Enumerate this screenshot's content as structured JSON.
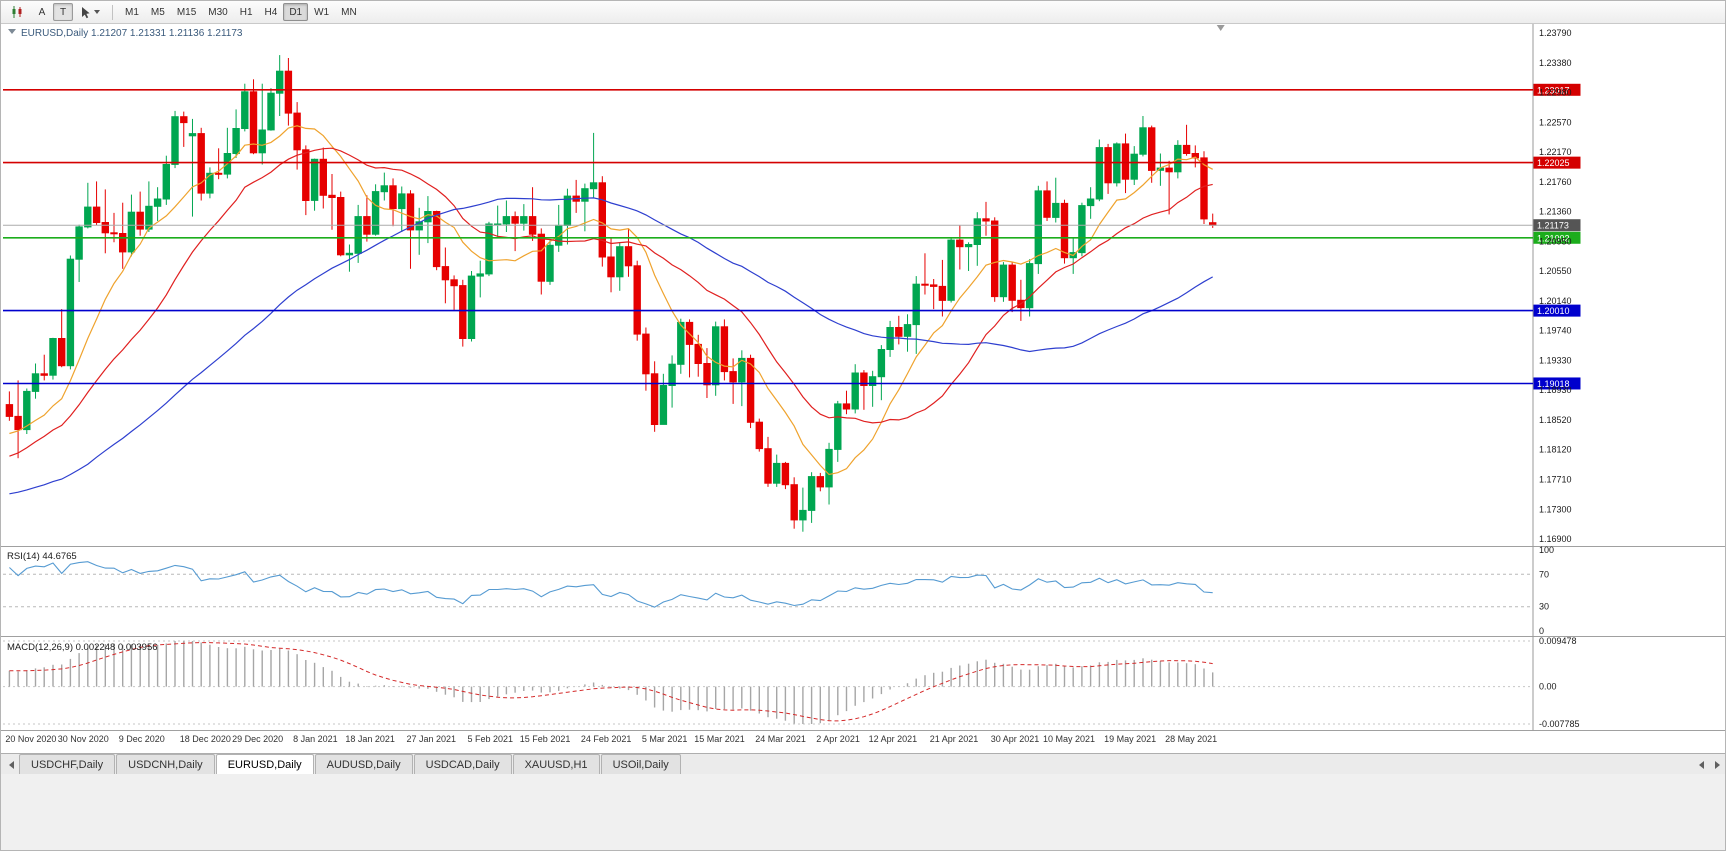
{
  "toolbar": {
    "a_label": "A",
    "t_label": "T",
    "timeframes": [
      "M1",
      "M5",
      "M15",
      "M30",
      "H1",
      "H4",
      "D1",
      "W1",
      "MN"
    ],
    "active_timeframe": "D1"
  },
  "chart": {
    "title": {
      "symbol_period": "EURUSD,Daily",
      "open": "1.21207",
      "high": "1.21331",
      "low": "1.21136",
      "close": "1.21173",
      "title_color": "#3a5a7c"
    },
    "up_color": "#00a650",
    "down_color": "#e60000",
    "price_axis_labels": [
      "1.23790",
      "1.23380",
      "1.22980",
      "1.22570",
      "1.22170",
      "1.21760",
      "1.21360",
      "1.20950",
      "1.20550",
      "1.20140",
      "1.19740",
      "1.19330",
      "1.18930",
      "1.18520",
      "1.18120",
      "1.17710",
      "1.17300",
      "1.16900"
    ],
    "horizontal_lines": [
      {
        "value": 1.23017,
        "label": "1.23017",
        "color": "#d40000"
      },
      {
        "value": 1.22025,
        "label": "1.22025",
        "color": "#d40000"
      },
      {
        "value": 1.21002,
        "label": "1.21002",
        "color": "#1cad1c"
      },
      {
        "value": 1.2001,
        "label": "1.20010",
        "color": "#0000cd"
      },
      {
        "value": 1.19018,
        "label": "1.19018",
        "color": "#0000cd"
      }
    ],
    "bid": {
      "value": 1.21173,
      "label": "1.21173",
      "line_color": "#ababab",
      "tag_color": "#555555"
    }
  },
  "rsi_panel": {
    "label": "RSI(14) 44.6765",
    "period": 14,
    "value": "44.6765",
    "axis_labels": [
      "100",
      "70",
      "30",
      "0"
    ],
    "levels": [
      70,
      30
    ],
    "line_color": "#569bd2"
  },
  "macd_panel": {
    "label": "MACD(12,26,9) 0.002248 0.003956",
    "params": "12,26,9",
    "macd_value": "0.002248",
    "signal_value": "0.003956",
    "axis_labels": [
      "0.009478",
      "0.00",
      "-0.007785"
    ],
    "scale_max": 0.009478,
    "scale_min": -0.007785,
    "histogram_color": "#a6a6a6",
    "signal_color": "#d42a2a"
  },
  "tabs": {
    "items": [
      "USDCHF,Daily",
      "USDCNH,Daily",
      "EURUSD,Daily",
      "AUDUSD,Daily",
      "USDCAD,Daily",
      "XAUUSD,H1",
      "USOil,Daily"
    ],
    "active": "EURUSD,Daily"
  },
  "chart_data": {
    "type": "candlestick",
    "symbol": "EURUSD",
    "period": "Daily",
    "price_min": 1.16832,
    "price_max": 1.23872,
    "x_labels": [
      "20 Nov 2020",
      "30 Nov 2020",
      "9 Dec 2020",
      "18 Dec 2020",
      "29 Dec 2020",
      "8 Jan 2021",
      "18 Jan 2021",
      "27 Jan 2021",
      "5 Feb 2021",
      "15 Feb 2021",
      "24 Feb 2021",
      "5 Mar 2021",
      "15 Mar 2021",
      "24 Mar 2021",
      "2 Apr 2021",
      "12 Apr 2021",
      "21 Apr 2021",
      "30 Apr 2021",
      "10 May 2021",
      "19 May 2021",
      "28 May 2021"
    ],
    "moving_averages": [
      {
        "period": 10,
        "color": "#efa32e"
      },
      {
        "period": 21,
        "color": "#e02020"
      },
      {
        "period": 50,
        "color": "#2e3fcf"
      }
    ],
    "candles": [
      [
        "20 Nov 2020",
        1.1873,
        1.1891,
        1.1851,
        1.1857
      ],
      [
        "23 Nov 2020",
        1.1857,
        1.1906,
        1.18,
        1.1839
      ],
      [
        "24 Nov 2020",
        1.1839,
        1.1895,
        1.1833,
        1.1891
      ],
      [
        "25 Nov 2020",
        1.1891,
        1.1929,
        1.1881,
        1.1915
      ],
      [
        "26 Nov 2020",
        1.1915,
        1.1941,
        1.1906,
        1.1913
      ],
      [
        "27 Nov 2020",
        1.1913,
        1.1964,
        1.1907,
        1.1963
      ],
      [
        "30 Nov 2020",
        1.1963,
        1.2003,
        1.1924,
        1.1926
      ],
      [
        "1 Dec 2020",
        1.1926,
        1.2076,
        1.1921,
        1.2071
      ],
      [
        "2 Dec 2020",
        1.2071,
        1.2118,
        1.204,
        1.2115
      ],
      [
        "3 Dec 2020",
        1.2115,
        1.2175,
        1.2113,
        1.2142
      ],
      [
        "4 Dec 2020",
        1.2142,
        1.2177,
        1.2117,
        1.2121
      ],
      [
        "7 Dec 2020",
        1.2121,
        1.2166,
        1.2079,
        1.2107
      ],
      [
        "8 Dec 2020",
        1.2107,
        1.2134,
        1.2094,
        1.2106
      ],
      [
        "9 Dec 2020",
        1.2106,
        1.2148,
        1.2058,
        1.2081
      ],
      [
        "10 Dec 2020",
        1.2081,
        1.2159,
        1.2075,
        1.2135
      ],
      [
        "11 Dec 2020",
        1.2135,
        1.2163,
        1.2103,
        1.2112
      ],
      [
        "14 Dec 2020",
        1.2112,
        1.2177,
        1.2108,
        1.2143
      ],
      [
        "15 Dec 2020",
        1.2143,
        1.2169,
        1.2123,
        1.2153
      ],
      [
        "16 Dec 2020",
        1.2153,
        1.2212,
        1.2145,
        1.22
      ],
      [
        "17 Dec 2020",
        1.22,
        1.2273,
        1.2195,
        1.2265
      ],
      [
        "18 Dec 2020",
        1.2265,
        1.2272,
        1.2224,
        1.2257
      ],
      [
        "21 Dec 2020",
        1.2239,
        1.2262,
        1.2129,
        1.2242
      ],
      [
        "22 Dec 2020",
        1.2242,
        1.225,
        1.2151,
        1.2161
      ],
      [
        "23 Dec 2020",
        1.2161,
        1.2196,
        1.2154,
        1.2188
      ],
      [
        "24 Dec 2020",
        1.2188,
        1.2222,
        1.218,
        1.2187
      ],
      [
        "28 Dec 2020",
        1.2187,
        1.225,
        1.2181,
        1.2215
      ],
      [
        "29 Dec 2020",
        1.2215,
        1.2275,
        1.2209,
        1.2249
      ],
      [
        "30 Dec 2020",
        1.2249,
        1.231,
        1.2245,
        1.2299
      ],
      [
        "31 Dec 2020",
        1.2299,
        1.2316,
        1.2214,
        1.2216
      ],
      [
        "4 Jan 2021",
        1.2216,
        1.231,
        1.22,
        1.2247
      ],
      [
        "5 Jan 2021",
        1.2247,
        1.2304,
        1.2246,
        1.2297
      ],
      [
        "6 Jan 2021",
        1.2297,
        1.2349,
        1.2266,
        1.2327
      ],
      [
        "7 Jan 2021",
        1.2327,
        1.2345,
        1.2253,
        1.227
      ],
      [
        "8 Jan 2021",
        1.227,
        1.2285,
        1.2193,
        1.222
      ],
      [
        "11 Jan 2021",
        1.222,
        1.2226,
        1.2131,
        1.2151
      ],
      [
        "12 Jan 2021",
        1.2151,
        1.2208,
        1.2137,
        1.2207
      ],
      [
        "13 Jan 2021",
        1.2207,
        1.2223,
        1.214,
        1.2158
      ],
      [
        "14 Jan 2021",
        1.2158,
        1.2187,
        1.2111,
        1.2155
      ],
      [
        "15 Jan 2021",
        1.2155,
        1.2163,
        1.2075,
        1.2077
      ],
      [
        "18 Jan 2021",
        1.2077,
        1.2091,
        1.2054,
        1.2079
      ],
      [
        "19 Jan 2021",
        1.2079,
        1.2145,
        1.2066,
        1.2129
      ],
      [
        "20 Jan 2021",
        1.2129,
        1.2158,
        1.2095,
        1.2105
      ],
      [
        "21 Jan 2021",
        1.2105,
        1.2173,
        1.2103,
        1.2163
      ],
      [
        "22 Jan 2021",
        1.2163,
        1.2189,
        1.2151,
        1.2171
      ],
      [
        "25 Jan 2021",
        1.2171,
        1.2181,
        1.2116,
        1.214
      ],
      [
        "26 Jan 2021",
        1.214,
        1.217,
        1.2108,
        1.216
      ],
      [
        "27 Jan 2021",
        1.216,
        1.2165,
        1.2058,
        1.2111
      ],
      [
        "28 Jan 2021",
        1.2111,
        1.2141,
        1.2077,
        1.2122
      ],
      [
        "29 Jan 2021",
        1.2122,
        1.2157,
        1.2093,
        1.2136
      ],
      [
        "1 Feb 2021",
        1.2136,
        1.2137,
        1.2056,
        1.2061
      ],
      [
        "2 Feb 2021",
        1.2061,
        1.2087,
        1.2011,
        1.2043
      ],
      [
        "3 Feb 2021",
        1.2043,
        1.2049,
        1.2002,
        1.2035
      ],
      [
        "4 Feb 2021",
        1.2035,
        1.2043,
        1.1952,
        1.1963
      ],
      [
        "5 Feb 2021",
        1.1963,
        1.2055,
        1.1959,
        1.2048
      ],
      [
        "8 Feb 2021",
        1.2048,
        1.2069,
        1.2019,
        1.2051
      ],
      [
        "9 Feb 2021",
        1.2051,
        1.2122,
        1.2048,
        1.2119
      ],
      [
        "10 Feb 2021",
        1.2119,
        1.2144,
        1.21,
        1.2119
      ],
      [
        "11 Feb 2021",
        1.2119,
        1.2151,
        1.2108,
        1.2129
      ],
      [
        "12 Feb 2021",
        1.2129,
        1.2136,
        1.2082,
        1.212
      ],
      [
        "15 Feb 2021",
        1.212,
        1.2146,
        1.211,
        1.2129
      ],
      [
        "16 Feb 2021",
        1.2129,
        1.2169,
        1.2096,
        1.2105
      ],
      [
        "17 Feb 2021",
        1.2105,
        1.2113,
        1.2023,
        1.2041
      ],
      [
        "18 Feb 2021",
        1.2041,
        1.2097,
        1.2036,
        1.209
      ],
      [
        "19 Feb 2021",
        1.209,
        1.2145,
        1.2081,
        1.2117
      ],
      [
        "22 Feb 2021",
        1.2117,
        1.2167,
        1.2091,
        1.2157
      ],
      [
        "23 Feb 2021",
        1.2157,
        1.2179,
        1.2134,
        1.215
      ],
      [
        "24 Feb 2021",
        1.215,
        1.2174,
        1.2109,
        1.2167
      ],
      [
        "25 Feb 2021",
        1.2167,
        1.2243,
        1.2155,
        1.2175
      ],
      [
        "26 Feb 2021",
        1.2175,
        1.2184,
        1.2061,
        1.2074
      ],
      [
        "1 Mar 2021",
        1.2074,
        1.2101,
        1.2026,
        1.2047
      ],
      [
        "2 Mar 2021",
        1.2047,
        1.2094,
        1.2028,
        1.2088
      ],
      [
        "3 Mar 2021",
        1.2088,
        1.2113,
        1.2047,
        1.2062
      ],
      [
        "4 Mar 2021",
        1.2062,
        1.2069,
        1.196,
        1.1969
      ],
      [
        "5 Mar 2021",
        1.1969,
        1.1978,
        1.1892,
        1.1915
      ],
      [
        "8 Mar 2021",
        1.1915,
        1.1932,
        1.1836,
        1.1846
      ],
      [
        "9 Mar 2021",
        1.1846,
        1.1915,
        1.1846,
        1.1899
      ],
      [
        "10 Mar 2021",
        1.1899,
        1.194,
        1.1869,
        1.1928
      ],
      [
        "11 Mar 2021",
        1.1928,
        1.199,
        1.1915,
        1.1985
      ],
      [
        "12 Mar 2021",
        1.1985,
        1.1989,
        1.191,
        1.1955
      ],
      [
        "15 Mar 2021",
        1.1955,
        1.1968,
        1.1911,
        1.1929
      ],
      [
        "16 Mar 2021",
        1.1929,
        1.195,
        1.1882,
        1.19
      ],
      [
        "17 Mar 2021",
        1.19,
        1.1986,
        1.1885,
        1.1979
      ],
      [
        "18 Mar 2021",
        1.1979,
        1.1989,
        1.1906,
        1.1918
      ],
      [
        "19 Mar 2021",
        1.1918,
        1.1936,
        1.1874,
        1.1904
      ],
      [
        "22 Mar 2021",
        1.1904,
        1.1947,
        1.1871,
        1.1936
      ],
      [
        "23 Mar 2021",
        1.1936,
        1.1941,
        1.1841,
        1.1849
      ],
      [
        "24 Mar 2021",
        1.1849,
        1.1854,
        1.1809,
        1.1813
      ],
      [
        "25 Mar 2021",
        1.1813,
        1.1829,
        1.1761,
        1.1766
      ],
      [
        "26 Mar 2021",
        1.1766,
        1.1805,
        1.1761,
        1.1793
      ],
      [
        "29 Mar 2021",
        1.1793,
        1.1795,
        1.1758,
        1.1764
      ],
      [
        "30 Mar 2021",
        1.1764,
        1.1774,
        1.1704,
        1.1716
      ],
      [
        "31 Mar 2021",
        1.1716,
        1.176,
        1.17,
        1.1729
      ],
      [
        "1 Apr 2021",
        1.1729,
        1.1781,
        1.1712,
        1.1775
      ],
      [
        "2 Apr 2021",
        1.1775,
        1.178,
        1.1755,
        1.1761
      ],
      [
        "5 Apr 2021",
        1.1761,
        1.1821,
        1.1737,
        1.1812
      ],
      [
        "6 Apr 2021",
        1.1812,
        1.1878,
        1.1795,
        1.1874
      ],
      [
        "7 Apr 2021",
        1.1874,
        1.1892,
        1.186,
        1.1867
      ],
      [
        "8 Apr 2021",
        1.1867,
        1.1928,
        1.1861,
        1.1916
      ],
      [
        "9 Apr 2021",
        1.1916,
        1.192,
        1.1866,
        1.1899
      ],
      [
        "12 Apr 2021",
        1.1899,
        1.1919,
        1.187,
        1.1911
      ],
      [
        "13 Apr 2021",
        1.1911,
        1.1954,
        1.1879,
        1.1948
      ],
      [
        "14 Apr 2021",
        1.1948,
        1.1987,
        1.1938,
        1.1978
      ],
      [
        "15 Apr 2021",
        1.1978,
        1.1994,
        1.1955,
        1.1966
      ],
      [
        "16 Apr 2021",
        1.1966,
        1.1996,
        1.1945,
        1.1982
      ],
      [
        "19 Apr 2021",
        1.1982,
        1.2048,
        1.1942,
        1.2037
      ],
      [
        "20 Apr 2021",
        1.2037,
        1.2079,
        1.2023,
        1.2036
      ],
      [
        "21 Apr 2021",
        1.2036,
        1.2044,
        1.2003,
        1.2034
      ],
      [
        "22 Apr 2021",
        1.2034,
        1.207,
        1.1993,
        1.2015
      ],
      [
        "23 Apr 2021",
        1.2015,
        1.21,
        1.2012,
        1.2097
      ],
      [
        "26 Apr 2021",
        1.2097,
        1.2117,
        1.2057,
        1.2088
      ],
      [
        "27 Apr 2021",
        1.2088,
        1.2094,
        1.2055,
        1.2091
      ],
      [
        "28 Apr 2021",
        1.2091,
        1.2135,
        1.2062,
        1.2126
      ],
      [
        "29 Apr 2021",
        1.2126,
        1.2149,
        1.2103,
        1.2123
      ],
      [
        "30 Apr 2021",
        1.2123,
        1.2128,
        1.2013,
        1.202
      ],
      [
        "3 May 2021",
        1.202,
        1.2067,
        1.2013,
        1.2063
      ],
      [
        "4 May 2021",
        1.2063,
        1.2067,
        1.1999,
        1.2015
      ],
      [
        "5 May 2021",
        1.2015,
        1.2043,
        1.1987,
        1.2005
      ],
      [
        "6 May 2021",
        1.2005,
        1.2071,
        1.1993,
        1.2065
      ],
      [
        "7 May 2021",
        1.2065,
        1.2171,
        1.2051,
        1.2164
      ],
      [
        "10 May 2021",
        1.2164,
        1.2177,
        1.2123,
        1.2128
      ],
      [
        "11 May 2021",
        1.2128,
        1.2182,
        1.2121,
        1.2147
      ],
      [
        "12 May 2021",
        1.2147,
        1.2152,
        1.2065,
        1.2073
      ],
      [
        "13 May 2021",
        1.2073,
        1.21,
        1.2051,
        1.208
      ],
      [
        "14 May 2021",
        1.208,
        1.2148,
        1.2075,
        1.2144
      ],
      [
        "17 May 2021",
        1.2144,
        1.2169,
        1.2126,
        1.2153
      ],
      [
        "18 May 2021",
        1.2153,
        1.2234,
        1.215,
        1.2223
      ],
      [
        "19 May 2021",
        1.2223,
        1.2228,
        1.216,
        1.2175
      ],
      [
        "20 May 2021",
        1.2175,
        1.223,
        1.217,
        1.2228
      ],
      [
        "21 May 2021",
        1.2228,
        1.2242,
        1.2161,
        1.218
      ],
      [
        "24 May 2021",
        1.218,
        1.2225,
        1.2172,
        1.2214
      ],
      [
        "25 May 2021",
        1.2214,
        1.2266,
        1.2211,
        1.225
      ],
      [
        "26 May 2021",
        1.225,
        1.2253,
        1.2175,
        1.2192
      ],
      [
        "27 May 2021",
        1.2192,
        1.2215,
        1.2171,
        1.2195
      ],
      [
        "28 May 2021",
        1.2195,
        1.2205,
        1.2132,
        1.219
      ],
      [
        "31 May 2021",
        1.219,
        1.2233,
        1.2181,
        1.2226
      ],
      [
        "1 Jun 2021",
        1.2226,
        1.2254,
        1.2212,
        1.2215
      ],
      [
        "2 Jun 2021",
        1.2215,
        1.2226,
        1.2196,
        1.2209
      ],
      [
        "3 Jun 2021",
        1.2209,
        1.2218,
        1.2119,
        1.2126
      ],
      [
        "4 Jun 2021",
        1.21207,
        1.21331,
        1.21136,
        1.21173
      ]
    ]
  }
}
